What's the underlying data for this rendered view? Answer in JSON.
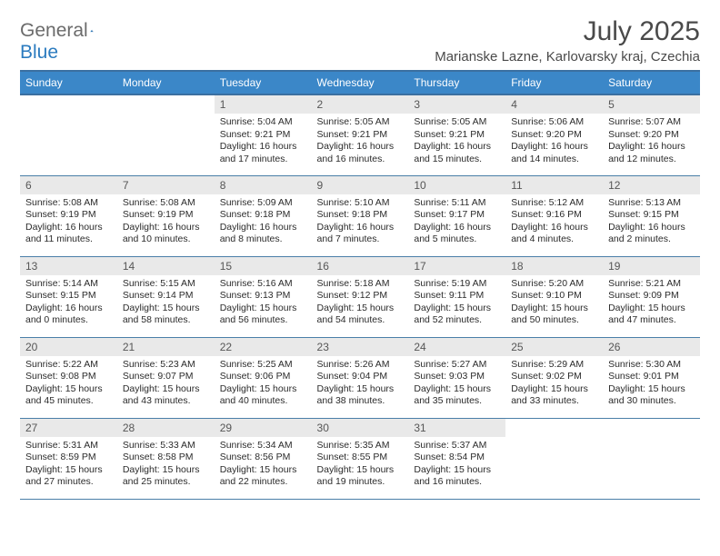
{
  "logo": {
    "text1": "General",
    "text2": "Blue"
  },
  "title": "July 2025",
  "location": "Marianske Lazne, Karlovarsky kraj, Czechia",
  "colors": {
    "header_bg": "#3b87c8",
    "header_border": "#3b6fa0",
    "daynum_bg": "#e9e9e9",
    "cell_border": "#4a7fa8",
    "title_color": "#4a4a4a",
    "logo_gray": "#6b6b6b",
    "logo_blue": "#2b7bbf"
  },
  "days_of_week": [
    "Sunday",
    "Monday",
    "Tuesday",
    "Wednesday",
    "Thursday",
    "Friday",
    "Saturday"
  ],
  "weeks": [
    [
      null,
      null,
      {
        "n": "1",
        "sr": "5:04 AM",
        "ss": "9:21 PM",
        "dl": "16 hours and 17 minutes."
      },
      {
        "n": "2",
        "sr": "5:05 AM",
        "ss": "9:21 PM",
        "dl": "16 hours and 16 minutes."
      },
      {
        "n": "3",
        "sr": "5:05 AM",
        "ss": "9:21 PM",
        "dl": "16 hours and 15 minutes."
      },
      {
        "n": "4",
        "sr": "5:06 AM",
        "ss": "9:20 PM",
        "dl": "16 hours and 14 minutes."
      },
      {
        "n": "5",
        "sr": "5:07 AM",
        "ss": "9:20 PM",
        "dl": "16 hours and 12 minutes."
      }
    ],
    [
      {
        "n": "6",
        "sr": "5:08 AM",
        "ss": "9:19 PM",
        "dl": "16 hours and 11 minutes."
      },
      {
        "n": "7",
        "sr": "5:08 AM",
        "ss": "9:19 PM",
        "dl": "16 hours and 10 minutes."
      },
      {
        "n": "8",
        "sr": "5:09 AM",
        "ss": "9:18 PM",
        "dl": "16 hours and 8 minutes."
      },
      {
        "n": "9",
        "sr": "5:10 AM",
        "ss": "9:18 PM",
        "dl": "16 hours and 7 minutes."
      },
      {
        "n": "10",
        "sr": "5:11 AM",
        "ss": "9:17 PM",
        "dl": "16 hours and 5 minutes."
      },
      {
        "n": "11",
        "sr": "5:12 AM",
        "ss": "9:16 PM",
        "dl": "16 hours and 4 minutes."
      },
      {
        "n": "12",
        "sr": "5:13 AM",
        "ss": "9:15 PM",
        "dl": "16 hours and 2 minutes."
      }
    ],
    [
      {
        "n": "13",
        "sr": "5:14 AM",
        "ss": "9:15 PM",
        "dl": "16 hours and 0 minutes."
      },
      {
        "n": "14",
        "sr": "5:15 AM",
        "ss": "9:14 PM",
        "dl": "15 hours and 58 minutes."
      },
      {
        "n": "15",
        "sr": "5:16 AM",
        "ss": "9:13 PM",
        "dl": "15 hours and 56 minutes."
      },
      {
        "n": "16",
        "sr": "5:18 AM",
        "ss": "9:12 PM",
        "dl": "15 hours and 54 minutes."
      },
      {
        "n": "17",
        "sr": "5:19 AM",
        "ss": "9:11 PM",
        "dl": "15 hours and 52 minutes."
      },
      {
        "n": "18",
        "sr": "5:20 AM",
        "ss": "9:10 PM",
        "dl": "15 hours and 50 minutes."
      },
      {
        "n": "19",
        "sr": "5:21 AM",
        "ss": "9:09 PM",
        "dl": "15 hours and 47 minutes."
      }
    ],
    [
      {
        "n": "20",
        "sr": "5:22 AM",
        "ss": "9:08 PM",
        "dl": "15 hours and 45 minutes."
      },
      {
        "n": "21",
        "sr": "5:23 AM",
        "ss": "9:07 PM",
        "dl": "15 hours and 43 minutes."
      },
      {
        "n": "22",
        "sr": "5:25 AM",
        "ss": "9:06 PM",
        "dl": "15 hours and 40 minutes."
      },
      {
        "n": "23",
        "sr": "5:26 AM",
        "ss": "9:04 PM",
        "dl": "15 hours and 38 minutes."
      },
      {
        "n": "24",
        "sr": "5:27 AM",
        "ss": "9:03 PM",
        "dl": "15 hours and 35 minutes."
      },
      {
        "n": "25",
        "sr": "5:29 AM",
        "ss": "9:02 PM",
        "dl": "15 hours and 33 minutes."
      },
      {
        "n": "26",
        "sr": "5:30 AM",
        "ss": "9:01 PM",
        "dl": "15 hours and 30 minutes."
      }
    ],
    [
      {
        "n": "27",
        "sr": "5:31 AM",
        "ss": "8:59 PM",
        "dl": "15 hours and 27 minutes."
      },
      {
        "n": "28",
        "sr": "5:33 AM",
        "ss": "8:58 PM",
        "dl": "15 hours and 25 minutes."
      },
      {
        "n": "29",
        "sr": "5:34 AM",
        "ss": "8:56 PM",
        "dl": "15 hours and 22 minutes."
      },
      {
        "n": "30",
        "sr": "5:35 AM",
        "ss": "8:55 PM",
        "dl": "15 hours and 19 minutes."
      },
      {
        "n": "31",
        "sr": "5:37 AM",
        "ss": "8:54 PM",
        "dl": "15 hours and 16 minutes."
      },
      null,
      null
    ]
  ],
  "labels": {
    "sunrise": "Sunrise:",
    "sunset": "Sunset:",
    "daylight": "Daylight:"
  }
}
